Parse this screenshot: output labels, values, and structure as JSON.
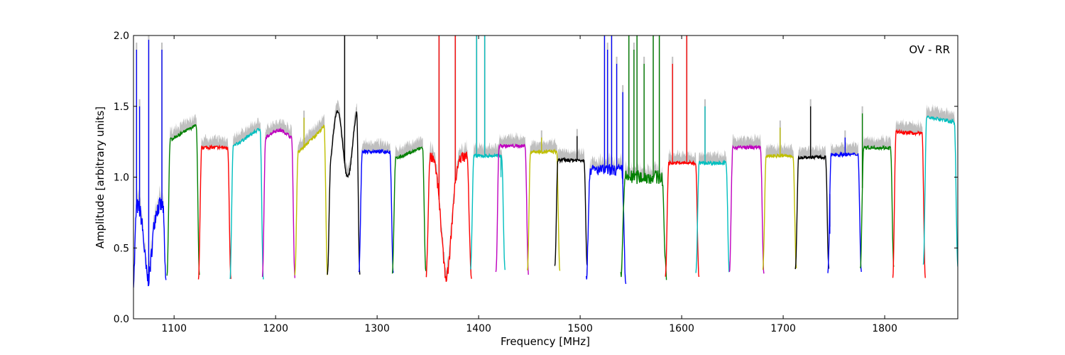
{
  "chart_data": {
    "type": "line",
    "title": "",
    "annotation": "OV - RR",
    "xlabel": "Frequency [MHz]",
    "ylabel": "Amplitude [arbitrary units]",
    "xlim": [
      1060,
      1872
    ],
    "ylim": [
      0.0,
      2.0
    ],
    "xticks": [
      1100,
      1200,
      1300,
      1400,
      1500,
      1600,
      1700,
      1800
    ],
    "yticks": [
      0.0,
      0.5,
      1.0,
      1.5,
      2.0
    ],
    "ytick_labels": [
      "0.0",
      "0.5",
      "1.0",
      "1.5",
      "2.0"
    ],
    "grid": false,
    "legend": "none",
    "envelope_color": "#bfbfbf",
    "subbands": [
      {
        "start": 1060,
        "end": 1092,
        "level": 0.8,
        "min": 0.28,
        "color": "#0000ff",
        "shape": "dip",
        "noise": 0.12,
        "spikes": [
          [
            1063,
            1.9
          ],
          [
            1066,
            1.5
          ],
          [
            1075,
            1.97
          ],
          [
            1088,
            1.9
          ]
        ]
      },
      {
        "start": 1093,
        "end": 1125,
        "level": 1.25,
        "min": 0.3,
        "color": "#008000",
        "shape": "rise",
        "peak": 1.38
      },
      {
        "start": 1124,
        "end": 1156,
        "level": 1.21,
        "min": 0.27,
        "color": "#ff0000",
        "shape": "flat"
      },
      {
        "start": 1155,
        "end": 1188,
        "level": 1.2,
        "min": 0.27,
        "color": "#00bfbf",
        "shape": "rise",
        "peak": 1.36
      },
      {
        "start": 1187,
        "end": 1219,
        "level": 1.25,
        "min": 0.3,
        "color": "#bf00bf",
        "shape": "hump",
        "peak": 1.33
      },
      {
        "start": 1219,
        "end": 1251,
        "level": 1.15,
        "min": 0.32,
        "color": "#bfbf00",
        "shape": "rise",
        "peak": 1.38,
        "spikes": [
          [
            1228,
            1.42
          ]
        ]
      },
      {
        "start": 1251,
        "end": 1283,
        "level": 1.0,
        "min": 0.31,
        "color": "#000000",
        "shape": "bumps",
        "peak": 1.47,
        "spikes": [
          [
            1268,
            2.0
          ]
        ]
      },
      {
        "start": 1282,
        "end": 1316,
        "level": 1.18,
        "min": 0.32,
        "color": "#0000ff",
        "shape": "flat"
      },
      {
        "start": 1315,
        "end": 1348,
        "level": 1.12,
        "min": 0.33,
        "color": "#008000",
        "shape": "rise",
        "peak": 1.22
      },
      {
        "start": 1348,
        "end": 1393,
        "level": 1.15,
        "min": 0.3,
        "color": "#ff0000",
        "shape": "dip",
        "noise": 0.08,
        "spikes": [
          [
            1361,
            2.0
          ],
          [
            1377,
            2.0
          ]
        ]
      },
      {
        "start": 1392,
        "end": 1426,
        "level": 1.15,
        "min": 0.35,
        "color": "#00bfbf",
        "shape": "flat",
        "spikes": [
          [
            1398,
            2.0
          ],
          [
            1406,
            2.0
          ],
          [
            1422,
            1.0
          ]
        ]
      },
      {
        "start": 1417,
        "end": 1449,
        "level": 1.22,
        "min": 0.32,
        "color": "#bf00bf",
        "shape": "flat"
      },
      {
        "start": 1448,
        "end": 1480,
        "level": 1.18,
        "min": 0.34,
        "color": "#bfbf00",
        "shape": "flat",
        "spikes": [
          [
            1462,
            1.28
          ]
        ]
      },
      {
        "start": 1475,
        "end": 1507,
        "level": 1.12,
        "min": 0.37,
        "color": "#000000",
        "shape": "flat",
        "spikes": [
          [
            1497,
            1.29
          ]
        ]
      },
      {
        "start": 1506,
        "end": 1545,
        "level": 1.05,
        "min": 0.27,
        "color": "#0000ff",
        "shape": "flat",
        "noise": 0.08,
        "spikes": [
          [
            1524,
            2.0
          ],
          [
            1527,
            1.9
          ],
          [
            1531,
            2.0
          ],
          [
            1536,
            1.8
          ],
          [
            1542,
            1.6
          ]
        ]
      },
      {
        "start": 1540,
        "end": 1585,
        "level": 1.0,
        "min": 0.29,
        "color": "#008000",
        "shape": "flat",
        "noise": 0.1,
        "spikes": [
          [
            1548,
            2.0
          ],
          [
            1553,
            1.9
          ],
          [
            1556,
            2.0
          ],
          [
            1563,
            1.8
          ],
          [
            1572,
            2.0
          ],
          [
            1578,
            2.0
          ]
        ]
      },
      {
        "start": 1584,
        "end": 1617,
        "level": 1.1,
        "min": 0.3,
        "color": "#ff0000",
        "shape": "flat",
        "spikes": [
          [
            1591,
            1.8
          ],
          [
            1605,
            2.0
          ]
        ]
      },
      {
        "start": 1614,
        "end": 1647,
        "level": 1.1,
        "min": 0.32,
        "color": "#00bfbf",
        "shape": "flat",
        "spikes": [
          [
            1623,
            1.5
          ]
        ]
      },
      {
        "start": 1647,
        "end": 1681,
        "level": 1.21,
        "min": 0.32,
        "color": "#bf00bf",
        "shape": "flat"
      },
      {
        "start": 1680,
        "end": 1713,
        "level": 1.15,
        "min": 0.35,
        "color": "#bfbf00",
        "shape": "flat",
        "spikes": [
          [
            1697,
            1.35
          ]
        ]
      },
      {
        "start": 1712,
        "end": 1745,
        "level": 1.14,
        "min": 0.35,
        "color": "#000000",
        "shape": "flat",
        "spikes": [
          [
            1727,
            1.5
          ]
        ]
      },
      {
        "start": 1744,
        "end": 1777,
        "level": 1.16,
        "min": 0.33,
        "color": "#0000ff",
        "shape": "flat",
        "spikes": [
          [
            1761,
            1.28
          ],
          [
            1746,
            0.6
          ]
        ]
      },
      {
        "start": 1776,
        "end": 1809,
        "level": 1.2,
        "min": 0.36,
        "color": "#008000",
        "shape": "fall",
        "peak": 1.21,
        "spikes": [
          [
            1778,
            1.45
          ]
        ]
      },
      {
        "start": 1808,
        "end": 1840,
        "level": 1.28,
        "min": 0.3,
        "color": "#ff0000",
        "shape": "fall",
        "peak": 1.32
      },
      {
        "start": 1838,
        "end": 1872,
        "level": 1.3,
        "min": 0.38,
        "color": "#00bfbf",
        "shape": "fall",
        "peak": 1.43
      }
    ]
  }
}
